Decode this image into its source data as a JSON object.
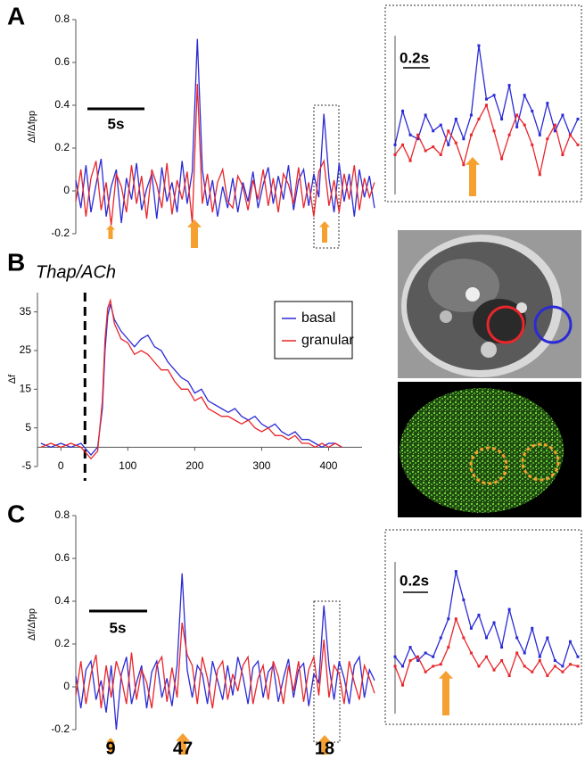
{
  "chart_data": [
    {
      "type": "line",
      "panel_label": "A",
      "ylabel": "Δf/Δfpp",
      "scale_bar_label": "5s",
      "ylim": [
        -0.2,
        0.8
      ],
      "yticks": [
        -0.2,
        0,
        0.2,
        0.4,
        0.6,
        0.8
      ],
      "series": [
        {
          "color": "#2b2bd6",
          "values": [
            0.05,
            -0.08,
            0.12,
            -0.1,
            0.03,
            0.15,
            -0.12,
            0.02,
            0.1,
            -0.15,
            0.06,
            -0.04,
            0.13,
            -0.09,
            0.01,
            0.08,
            -0.13,
            0.11,
            -0.05,
            0.04,
            -0.1,
            0.14,
            -0.06,
            0.09,
            0.71,
            0.1,
            -0.07,
            0.05,
            -0.12,
            0.02,
            -0.08,
            0.06,
            -0.1,
            0.04,
            -0.05,
            0.09,
            -0.08,
            0.03,
            0.11,
            -0.06,
            0.07,
            -0.04,
            0.12,
            -0.09,
            0.05,
            0.1,
            -0.07,
            0.08,
            -0.03,
            0.36,
            0.06,
            -0.1,
            0.13,
            -0.05,
            0.08,
            -0.12,
            0.1,
            -0.03,
            0.07,
            -0.08
          ]
        },
        {
          "color": "#e8262b",
          "values": [
            -0.05,
            0.1,
            -0.12,
            0.06,
            0.14,
            -0.09,
            0.04,
            -0.16,
            0.08,
            0.02,
            -0.1,
            0.12,
            -0.06,
            0.07,
            -0.13,
            0.1,
            0.03,
            -0.08,
            0.13,
            -0.11,
            0.05,
            -0.04,
            0.09,
            -0.15,
            0.5,
            -0.06,
            0.08,
            -0.1,
            0.04,
            0.1,
            -0.05,
            -0.08,
            0.07,
            0.02,
            -0.09,
            0.05,
            -0.04,
            0.1,
            -0.07,
            0.06,
            -0.1,
            0.08,
            0.03,
            -0.06,
            0.11,
            -0.08,
            0.04,
            -0.12,
            0.09,
            0.14,
            -0.07,
            0.05,
            -0.1,
            0.08,
            -0.04,
            0.12,
            -0.09,
            0.06,
            -0.03,
            0.04
          ]
        }
      ]
    },
    {
      "type": "line",
      "scale_bar_label": "0.2s",
      "ylim": [
        -0.2,
        0.6
      ],
      "series": [
        {
          "color": "#2b2bd6",
          "values": [
            0.05,
            0.22,
            0.1,
            0.08,
            0.2,
            0.12,
            0.15,
            0.05,
            0.18,
            0.08,
            0.2,
            0.55,
            0.28,
            0.3,
            0.18,
            0.35,
            0.14,
            0.3,
            0.22,
            0.1,
            0.26,
            0.12,
            0.2,
            0.1,
            0.18
          ]
        },
        {
          "color": "#e8262b",
          "values": [
            0.0,
            0.05,
            -0.03,
            0.1,
            0.02,
            0.04,
            0.0,
            0.12,
            0.06,
            -0.05,
            0.1,
            0.18,
            0.25,
            0.12,
            -0.02,
            0.1,
            0.2,
            0.15,
            0.05,
            -0.1,
            0.08,
            0.15,
            0.0,
            0.1,
            0.05
          ]
        }
      ]
    },
    {
      "type": "line",
      "panel_label": "B",
      "annotation": "Thap/ACh",
      "ylabel": "Δf",
      "event_x": 36,
      "xlim": [
        -35,
        450
      ],
      "xticks": [
        0,
        100,
        200,
        300,
        400
      ],
      "ylim": [
        -5,
        40
      ],
      "yticks": [
        -5,
        5,
        15,
        25,
        35
      ],
      "x": [
        -30,
        -15,
        0,
        15,
        30,
        45,
        55,
        62,
        66,
        70,
        74,
        80,
        90,
        100,
        110,
        120,
        130,
        140,
        150,
        160,
        170,
        180,
        190,
        200,
        210,
        220,
        230,
        240,
        250,
        260,
        270,
        280,
        290,
        300,
        310,
        320,
        330,
        340,
        350,
        360,
        370,
        380,
        390,
        400,
        410,
        420
      ],
      "series": [
        {
          "name": "basal",
          "color": "#2b2bd6",
          "values": [
            1,
            0,
            1,
            0,
            1,
            -2,
            0,
            10,
            25,
            34,
            37,
            33,
            30,
            28,
            26,
            28,
            29,
            26,
            25,
            22,
            20,
            18,
            17,
            14,
            15,
            12,
            11,
            10,
            9,
            10,
            8,
            7,
            8,
            6,
            5,
            6,
            4,
            3,
            4,
            2,
            2,
            1,
            0,
            1,
            1,
            0
          ]
        },
        {
          "name": "granular",
          "color": "#e8262b",
          "values": [
            0,
            1,
            0,
            1,
            0,
            -3,
            -1,
            12,
            28,
            36,
            38,
            32,
            28,
            27,
            24,
            25,
            24,
            22,
            20,
            20,
            17,
            15,
            15,
            12,
            13,
            10,
            9,
            8,
            8,
            7,
            6,
            7,
            5,
            4,
            5,
            3,
            3,
            2,
            3,
            1,
            1,
            0,
            1,
            0,
            1,
            0
          ]
        }
      ]
    },
    {
      "type": "line",
      "panel_label": "C",
      "ylabel": "Δf/Δfpp",
      "scale_bar_label": "5s",
      "annotations": [
        "9",
        "47",
        "18"
      ],
      "ylim": [
        -0.2,
        0.8
      ],
      "yticks": [
        -0.2,
        0,
        0.2,
        0.4,
        0.6,
        0.8
      ],
      "series": [
        {
          "color": "#2b2bd6",
          "values": [
            0.05,
            -0.1,
            0.08,
            0.12,
            -0.06,
            0.03,
            -0.12,
            0.1,
            -0.2,
            0.06,
            0.14,
            -0.08,
            0.02,
            0.1,
            -0.1,
            0.07,
            0.12,
            -0.05,
            0.04,
            -0.09,
            0.1,
            0.53,
            0.08,
            -0.05,
            0.1,
            0.06,
            -0.08,
            0.12,
            0.03,
            -0.06,
            0.1,
            -0.04,
            0.14,
            0.05,
            -0.08,
            0.09,
            0.12,
            -0.05,
            0.07,
            0.1,
            -0.07,
            0.04,
            0.13,
            -0.05,
            0.08,
            0.11,
            -0.09,
            0.06,
            0.02,
            0.38,
            0.1,
            -0.06,
            0.12,
            0.04,
            -0.08,
            0.1,
            0.14,
            -0.05,
            0.08,
            0.03
          ]
        },
        {
          "color": "#e8262b",
          "values": [
            -0.04,
            0.12,
            -0.08,
            0.06,
            0.15,
            -0.1,
            0.1,
            -0.05,
            0.12,
            0.04,
            -0.08,
            0.16,
            -0.06,
            0.08,
            0.02,
            -0.1,
            0.1,
            0.14,
            -0.07,
            0.09,
            -0.05,
            0.3,
            0.15,
            0.1,
            -0.08,
            0.14,
            0.04,
            -0.1,
            0.08,
            0.12,
            -0.06,
            0.06,
            -0.02,
            0.1,
            0.14,
            -0.08,
            0.04,
            0.1,
            -0.06,
            0.12,
            0.05,
            -0.08,
            0.1,
            -0.02,
            0.12,
            -0.07,
            0.08,
            0.14,
            -0.04,
            0.22,
            -0.05,
            0.1,
            0.06,
            -0.08,
            0.12,
            0.02,
            -0.06,
            0.1,
            0.04,
            -0.03
          ]
        }
      ]
    },
    {
      "type": "line",
      "scale_bar_label": "0.2s",
      "ylim": [
        -0.2,
        0.6
      ],
      "series": [
        {
          "color": "#2b2bd6",
          "values": [
            0.1,
            0.05,
            0.15,
            0.08,
            0.12,
            0.1,
            0.2,
            0.3,
            0.55,
            0.4,
            0.25,
            0.32,
            0.2,
            0.28,
            0.15,
            0.35,
            0.2,
            0.12,
            0.25,
            0.1,
            0.2,
            0.08,
            0.05,
            0.18,
            0.1
          ]
        },
        {
          "color": "#e8262b",
          "values": [
            0.05,
            -0.05,
            0.08,
            0.1,
            0.02,
            0.05,
            0.06,
            0.15,
            0.3,
            0.2,
            0.12,
            0.05,
            0.1,
            0.03,
            0.08,
            0.0,
            0.12,
            0.05,
            0.02,
            0.08,
            0.0,
            0.05,
            0.02,
            0.06,
            0.05
          ]
        }
      ]
    }
  ]
}
